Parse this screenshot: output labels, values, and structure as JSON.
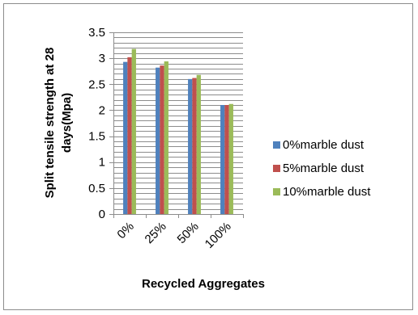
{
  "chart_data": {
    "type": "bar",
    "categories": [
      "0%",
      "25%",
      "50%",
      "100%"
    ],
    "series": [
      {
        "name": "0%marble dust",
        "values": [
          2.93,
          2.82,
          2.6,
          2.1
        ],
        "color": "#4f81bd"
      },
      {
        "name": "5%marble dust",
        "values": [
          3.02,
          2.86,
          2.62,
          2.1
        ],
        "color": "#c0504d"
      },
      {
        "name": "10%marble dust",
        "values": [
          3.18,
          2.94,
          2.68,
          2.12
        ],
        "color": "#9bbb59"
      }
    ],
    "xlabel": "Recycled Aggregates",
    "ylabel_line1": "Split tensile strength at 28",
    "ylabel_line2": "days(Mpa)",
    "ylim": [
      0,
      3.5
    ],
    "yticks": [
      "0",
      "0.5",
      "1",
      "1.5",
      "2",
      "2.5",
      "3",
      "3.5"
    ],
    "minor_grid_step": 0.1,
    "grid": true,
    "legend_position": "right"
  }
}
